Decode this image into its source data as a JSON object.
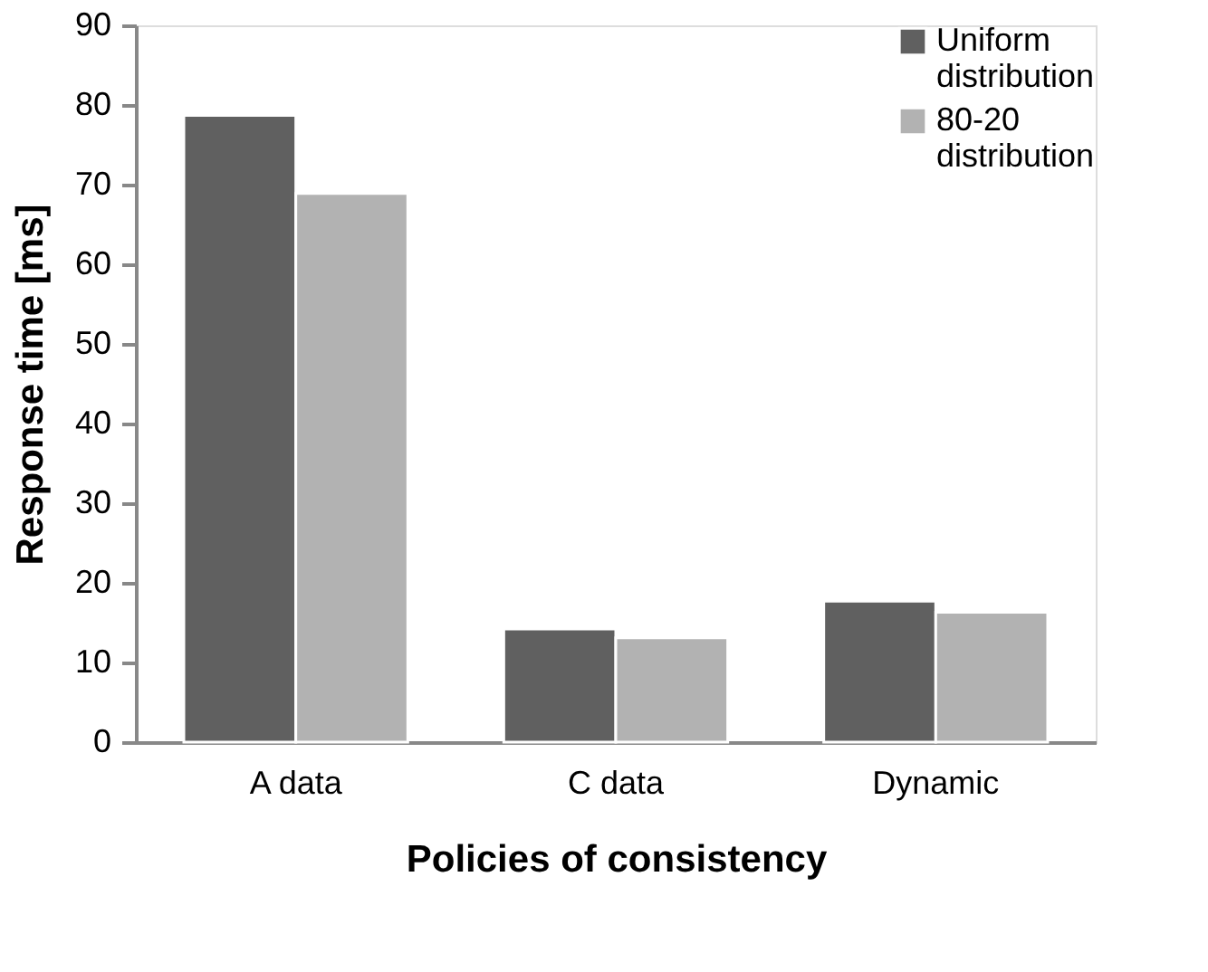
{
  "chart_data": {
    "type": "bar",
    "xlabel": "Policies of consistency",
    "ylabel": "Response time [ms]",
    "categories": [
      "A data",
      "C data",
      "Dynamic"
    ],
    "series": [
      {
        "name": "Uniform distribution",
        "color": "#606060",
        "values": [
          78.7,
          14.2,
          17.7
        ]
      },
      {
        "name": "80-20 distribution",
        "color": "#b2b2b2",
        "values": [
          68.9,
          13.1,
          16.3
        ]
      }
    ],
    "ylim": [
      0,
      90
    ],
    "yticks": [
      0,
      10,
      20,
      30,
      40,
      50,
      60,
      70,
      80,
      90
    ],
    "grid": false,
    "legend": "top right"
  }
}
